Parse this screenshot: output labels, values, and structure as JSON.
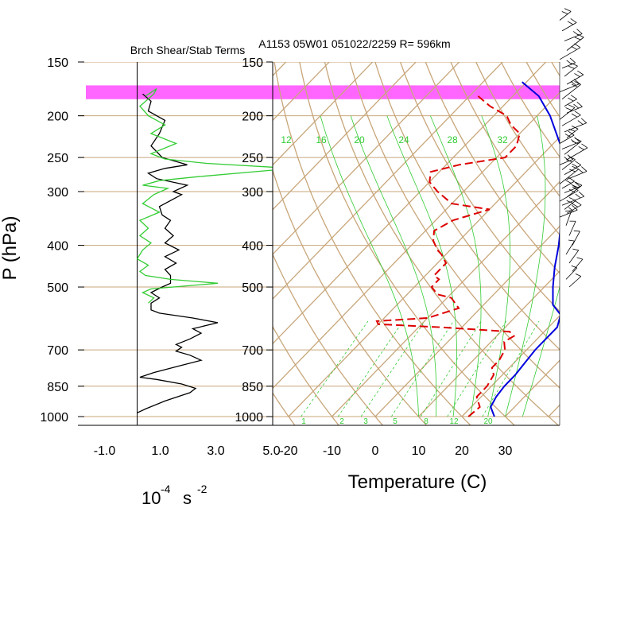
{
  "titles": {
    "main": "A1153 05W01 051022/2259 R= 596km",
    "left_panel": "Brch Shear/Stab Terms",
    "y_axis": "P (hPa)",
    "x_axis_right": "Temperature (C)",
    "x_axis_left_base": "10",
    "x_axis_left_exp1": "-4",
    "x_axis_left_unit": "s",
    "x_axis_left_exp2": "-2"
  },
  "colors": {
    "background": "#ffffff",
    "grid": "#c8a67a",
    "highlight": "#ff66ff",
    "temperature": "#0000dd",
    "dewpoint": "#dd0000",
    "shear": "#000000",
    "stability": "#33cc33",
    "mixing_ratio": "#33cc33"
  },
  "chart_data": [
    {
      "type": "line",
      "panel": "left",
      "title": "Brch Shear/Stab Terms",
      "xlabel": "10^-4 s^-2",
      "ylabel": "P (hPa)",
      "y_scale": "log",
      "ylim": [
        1000,
        150
      ],
      "xlim": [
        -1.0,
        5.6
      ],
      "x_ticks": [
        -1.0,
        1.0,
        3.0,
        5.0
      ],
      "x_tick_labels": [
        "-1.0",
        "1.0",
        "3.0",
        "5.0"
      ],
      "y_ticks": [
        150,
        200,
        250,
        300,
        400,
        500,
        700,
        850,
        1000
      ],
      "y_tick_labels": [
        "150",
        "200",
        "250",
        "300",
        "400",
        "500",
        "700",
        "850",
        "1000"
      ],
      "highlight_band_hpa": [
        170,
        183
      ],
      "series": [
        {
          "style": "black",
          "points": [
            [
              0.0,
              980
            ],
            [
              0.3,
              960
            ],
            [
              1.0,
              920
            ],
            [
              1.9,
              880
            ],
            [
              2.1,
              860
            ],
            [
              1.6,
              840
            ],
            [
              0.7,
              820
            ],
            [
              0.1,
              810
            ],
            [
              0.6,
              790
            ],
            [
              1.6,
              760
            ],
            [
              2.3,
              740
            ],
            [
              1.9,
              720
            ],
            [
              1.4,
              705
            ],
            [
              1.6,
              690
            ],
            [
              1.4,
              680
            ],
            [
              1.9,
              660
            ],
            [
              2.3,
              640
            ],
            [
              2.0,
              625
            ],
            [
              2.9,
              605
            ],
            [
              2.0,
              590
            ],
            [
              0.8,
              575
            ],
            [
              0.5,
              565
            ],
            [
              0.5,
              545
            ],
            [
              0.8,
              530
            ],
            [
              0.5,
              515
            ],
            [
              0.9,
              500
            ],
            [
              1.2,
              490
            ],
            [
              1.2,
              470
            ],
            [
              1.0,
              455
            ],
            [
              1.4,
              440
            ],
            [
              1.0,
              425
            ],
            [
              1.5,
              410
            ],
            [
              1.0,
              395
            ],
            [
              1.3,
              380
            ],
            [
              1.0,
              365
            ],
            [
              1.2,
              350
            ],
            [
              0.9,
              340
            ],
            [
              0.8,
              325
            ],
            [
              1.6,
              305
            ],
            [
              1.3,
              300
            ],
            [
              1.8,
              290
            ],
            [
              0.7,
              280
            ],
            [
              0.4,
              272
            ],
            [
              1.0,
              265
            ],
            [
              1.8,
              260
            ],
            [
              0.9,
              250
            ],
            [
              0.5,
              235
            ],
            [
              0.8,
              220
            ],
            [
              1.0,
              205
            ],
            [
              0.4,
              195
            ],
            [
              0.5,
              185
            ],
            [
              0.2,
              178
            ]
          ]
        },
        {
          "style": "green",
          "points": [
            [
              0.4,
              545
            ],
            [
              0.6,
              530
            ],
            [
              0.2,
              515
            ],
            [
              0.5,
              505
            ],
            [
              2.9,
              490
            ],
            [
              1.2,
              480
            ],
            [
              0.3,
              470
            ],
            [
              0.1,
              460
            ],
            [
              0.4,
              445
            ],
            [
              0.0,
              430
            ],
            [
              0.2,
              410
            ],
            [
              0.5,
              395
            ],
            [
              0.1,
              380
            ],
            [
              0.4,
              365
            ],
            [
              0.1,
              350
            ],
            [
              0.8,
              335
            ],
            [
              0.2,
              320
            ],
            [
              0.6,
              305
            ],
            [
              1.1,
              295
            ],
            [
              0.2,
              290
            ],
            [
              0.8,
              283
            ],
            [
              2.2,
              277
            ],
            [
              5.6,
              265
            ],
            [
              2.5,
              258
            ],
            [
              1.0,
              252
            ],
            [
              0.5,
              245
            ],
            [
              1.4,
              232
            ],
            [
              0.5,
              220
            ],
            [
              1.0,
              210
            ],
            [
              0.4,
              200
            ],
            [
              0.1,
              190
            ],
            [
              0.6,
              178
            ],
            [
              0.7,
              173
            ],
            [
              0.3,
              180
            ]
          ]
        }
      ]
    },
    {
      "type": "line",
      "panel": "right",
      "subtype": "skew-T log-p",
      "title": "A1153 05W01 051022/2259 R= 596km",
      "xlabel": "Temperature (C)",
      "y_scale": "log",
      "ylim": [
        1000,
        150
      ],
      "xlim": [
        -23,
        40
      ],
      "x_ticks": [
        -20,
        -10,
        0,
        10,
        20,
        30
      ],
      "x_tick_labels": [
        "-20",
        "-10",
        "0",
        "10",
        "20",
        "30"
      ],
      "y_ticks": [
        150,
        200,
        250,
        300,
        400,
        500,
        700,
        850,
        1000
      ],
      "y_tick_labels": [
        "150",
        "200",
        "250",
        "300",
        "400",
        "500",
        "700",
        "850",
        "1000"
      ],
      "mixing_ratio_labels_top": [
        "12",
        "16",
        "20",
        "24",
        "28",
        "32"
      ],
      "mixing_ratio_labels_bottom": [
        "1",
        "2",
        "3",
        "5",
        "8",
        "12",
        "20"
      ],
      "series": [
        {
          "name": "Temperature",
          "style": "solid-blue",
          "points": [
            [
              27.5,
              1000
            ],
            [
              24.5,
              950
            ],
            [
              23.5,
              900
            ],
            [
              23.0,
              850
            ],
            [
              23.0,
              800
            ],
            [
              22.5,
              750
            ],
            [
              22.0,
              700
            ],
            [
              22.0,
              650
            ],
            [
              22.0,
              620
            ],
            [
              20.0,
              580
            ],
            [
              16.0,
              550
            ],
            [
              12.0,
              500
            ],
            [
              8.0,
              450
            ],
            [
              4.0,
              400
            ],
            [
              -1.0,
              350
            ],
            [
              -6.0,
              300
            ],
            [
              -10.0,
              270
            ],
            [
              -14.0,
              250
            ],
            [
              -19.0,
              230
            ],
            [
              -27.0,
              200
            ],
            [
              -34.0,
              180
            ],
            [
              -41.0,
              167
            ]
          ]
        },
        {
          "name": "Dewpoint",
          "style": "dashed-red",
          "points": [
            [
              21.5,
              1000
            ],
            [
              22.0,
              950
            ],
            [
              19.0,
              900
            ],
            [
              19.0,
              850
            ],
            [
              18.0,
              800
            ],
            [
              16.0,
              770
            ],
            [
              16.0,
              740
            ],
            [
              15.0,
              700
            ],
            [
              13.0,
              670
            ],
            [
              14.0,
              650
            ],
            [
              12.0,
              635
            ],
            [
              -5.0,
              620
            ],
            [
              -20.0,
              610
            ],
            [
              -21.0,
              600
            ],
            [
              -10.0,
              590
            ],
            [
              -5.0,
              560
            ],
            [
              -9.0,
              530
            ],
            [
              -13.0,
              520
            ],
            [
              -16.0,
              500
            ],
            [
              -16.0,
              480
            ],
            [
              -18.0,
              470
            ],
            [
              -18.0,
              440
            ],
            [
              -21.0,
              420
            ],
            [
              -23.0,
              410
            ],
            [
              -26.0,
              390
            ],
            [
              -28.0,
              370
            ],
            [
              -26.0,
              350
            ],
            [
              -20.0,
              330
            ],
            [
              -30.0,
              320
            ],
            [
              -36.0,
              300
            ],
            [
              -40.0,
              285
            ],
            [
              -42.0,
              270
            ],
            [
              -37.0,
              260
            ],
            [
              -28.0,
              250
            ],
            [
              -28.0,
              235
            ],
            [
              -30.0,
              220
            ],
            [
              -34.0,
              210
            ],
            [
              -37.0,
              200
            ],
            [
              -43.0,
              190
            ],
            [
              -48.0,
              180
            ]
          ]
        }
      ]
    }
  ]
}
